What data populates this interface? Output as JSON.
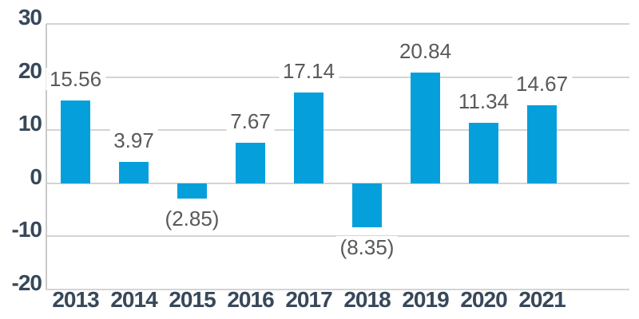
{
  "chart_data": {
    "type": "bar",
    "categories": [
      "2013",
      "2014",
      "2015",
      "2016",
      "2017",
      "2018",
      "2019",
      "2020",
      "2021"
    ],
    "values": [
      15.56,
      3.97,
      -2.85,
      7.67,
      17.14,
      -8.35,
      20.84,
      11.34,
      14.67
    ],
    "value_labels": [
      "15.56",
      "3.97",
      "(2.85)",
      "7.67",
      "17.14",
      "(8.35)",
      "20.84",
      "11.34",
      "14.67"
    ],
    "yticks": [
      30,
      20,
      10,
      0,
      -10,
      -20
    ],
    "ytick_labels": [
      "30",
      "20",
      "10",
      "0",
      "-10",
      "-20"
    ],
    "ylim": [
      -20,
      30
    ],
    "grid": "horizontal",
    "legend": "none",
    "colors": {
      "bar": "#05a0dc",
      "axis_text": "#37485a",
      "value_label": "#595959",
      "gridline": "#d4d4d4",
      "axis_line": "#c9c9c9"
    }
  }
}
